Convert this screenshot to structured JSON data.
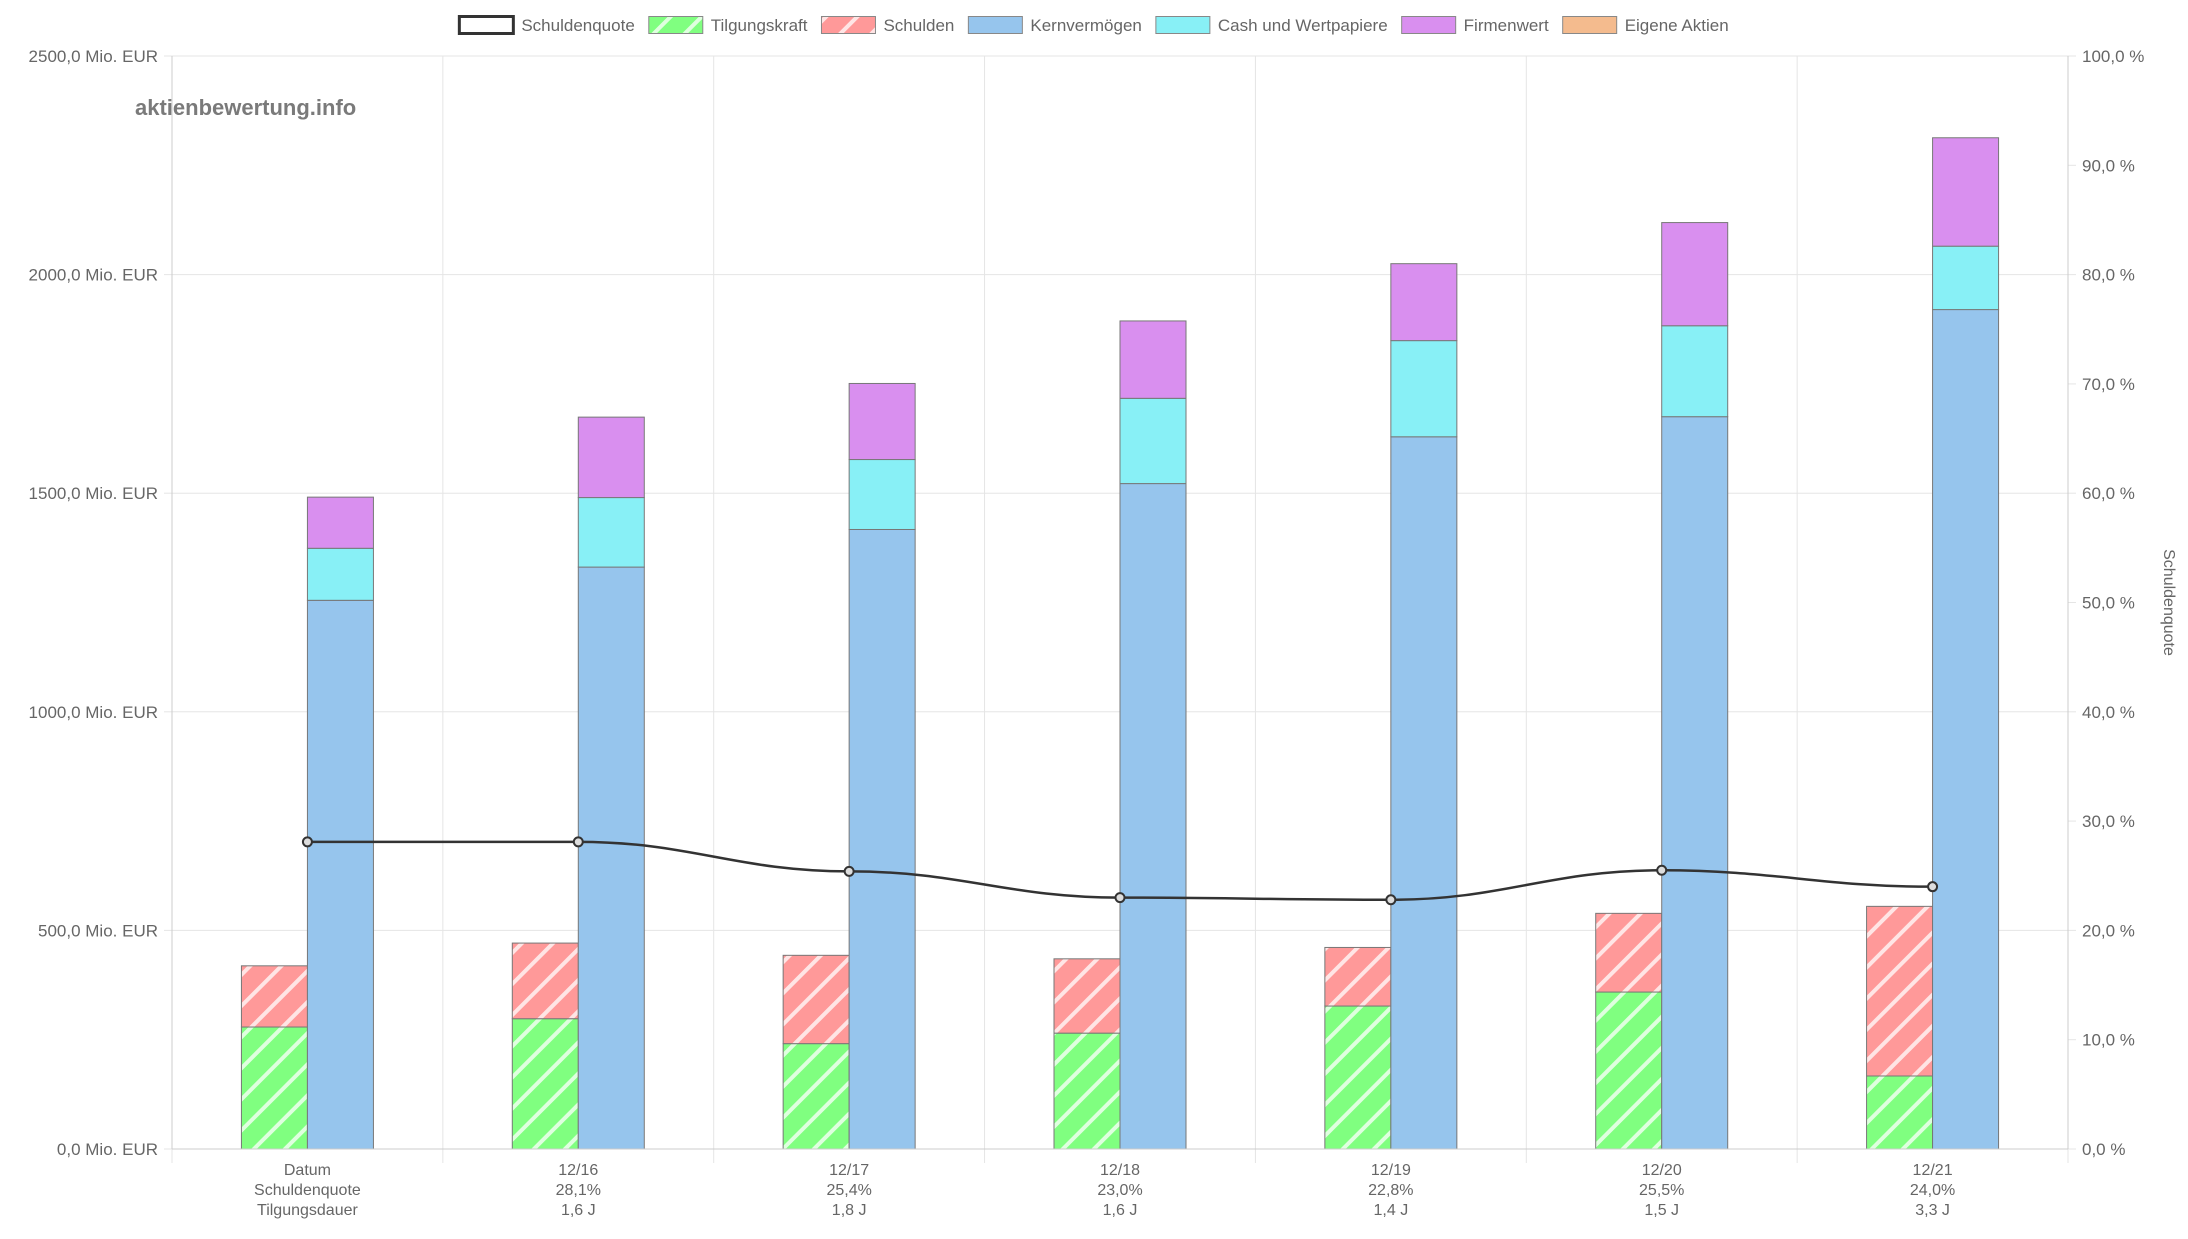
{
  "watermark": "aktienbewertung.info",
  "chart_data": {
    "type": "bar",
    "categories": [
      "Datum",
      "12/16",
      "12/17",
      "12/18",
      "12/19",
      "12/20",
      "12/21"
    ],
    "x_sub_labels": [
      [
        "Schuldenquote",
        "Tilgungsdauer"
      ],
      [
        "28,1%",
        "1,6 J"
      ],
      [
        "25,4%",
        "1,8 J"
      ],
      [
        "23,0%",
        "1,6 J"
      ],
      [
        "22,8%",
        "1,4 J"
      ],
      [
        "25,5%",
        "1,5 J"
      ],
      [
        "24,0%",
        "3,3 J"
      ]
    ],
    "y_left": {
      "min": 0,
      "max": 2500,
      "step": 500,
      "unit": "Mio. EUR",
      "tick_labels": [
        "0,0 Mio. EUR",
        "500,0 Mio. EUR",
        "1000,0 Mio. EUR",
        "1500,0 Mio. EUR",
        "2000,0 Mio. EUR",
        "2500,0 Mio. EUR"
      ]
    },
    "y_right": {
      "min": 0,
      "max": 100,
      "step": 10,
      "label": "Schuldenquote",
      "tick_labels": [
        "0,0 %",
        "10,0 %",
        "20,0 %",
        "30,0 %",
        "40,0 %",
        "50,0 %",
        "60,0 %",
        "70,0 %",
        "80,0 %",
        "90,0 %",
        "100,0 %"
      ]
    },
    "grid": true,
    "legend_position": "top",
    "legend": [
      {
        "name": "Schuldenquote",
        "kind": "line",
        "color": "#333333"
      },
      {
        "name": "Tilgungskraft",
        "kind": "hatched",
        "color": "#80ff80"
      },
      {
        "name": "Schulden",
        "kind": "hatched",
        "color": "#ff9999"
      },
      {
        "name": "Kernvermögen",
        "kind": "solid",
        "color": "#96c5ed"
      },
      {
        "name": "Cash und Wertpapiere",
        "kind": "solid",
        "color": "#88f0f6"
      },
      {
        "name": "Firmenwert",
        "kind": "solid",
        "color": "#d98fef"
      },
      {
        "name": "Eigene Aktien",
        "kind": "solid",
        "color": "#f4bb8e"
      }
    ],
    "stack_left": [
      {
        "name": "Tilgungskraft",
        "values": [
          279,
          298,
          241,
          265,
          327,
          359,
          167
        ]
      },
      {
        "name": "Schulden",
        "values": [
          140,
          173,
          202,
          170,
          134,
          180,
          388
        ]
      }
    ],
    "stack_right": [
      {
        "name": "Kernvermögen",
        "values": [
          1255,
          1331,
          1417,
          1522,
          1629,
          1675,
          1920
        ]
      },
      {
        "name": "Cash und Wertpapiere",
        "values": [
          119,
          159,
          160,
          195,
          220,
          208,
          145
        ]
      },
      {
        "name": "Firmenwert",
        "values": [
          117,
          184,
          174,
          177,
          176,
          236,
          248
        ]
      },
      {
        "name": "Eigene Aktien",
        "values": [
          0,
          0,
          0,
          0,
          0,
          0,
          0
        ]
      }
    ],
    "line_series": {
      "name": "Schuldenquote",
      "values": [
        28.1,
        28.1,
        25.4,
        23.0,
        22.8,
        25.5,
        24.0
      ]
    }
  },
  "colors": {
    "grid": "#e5e5e5",
    "axis": "#999999",
    "bar_border": "#777777",
    "line": "#333333"
  }
}
